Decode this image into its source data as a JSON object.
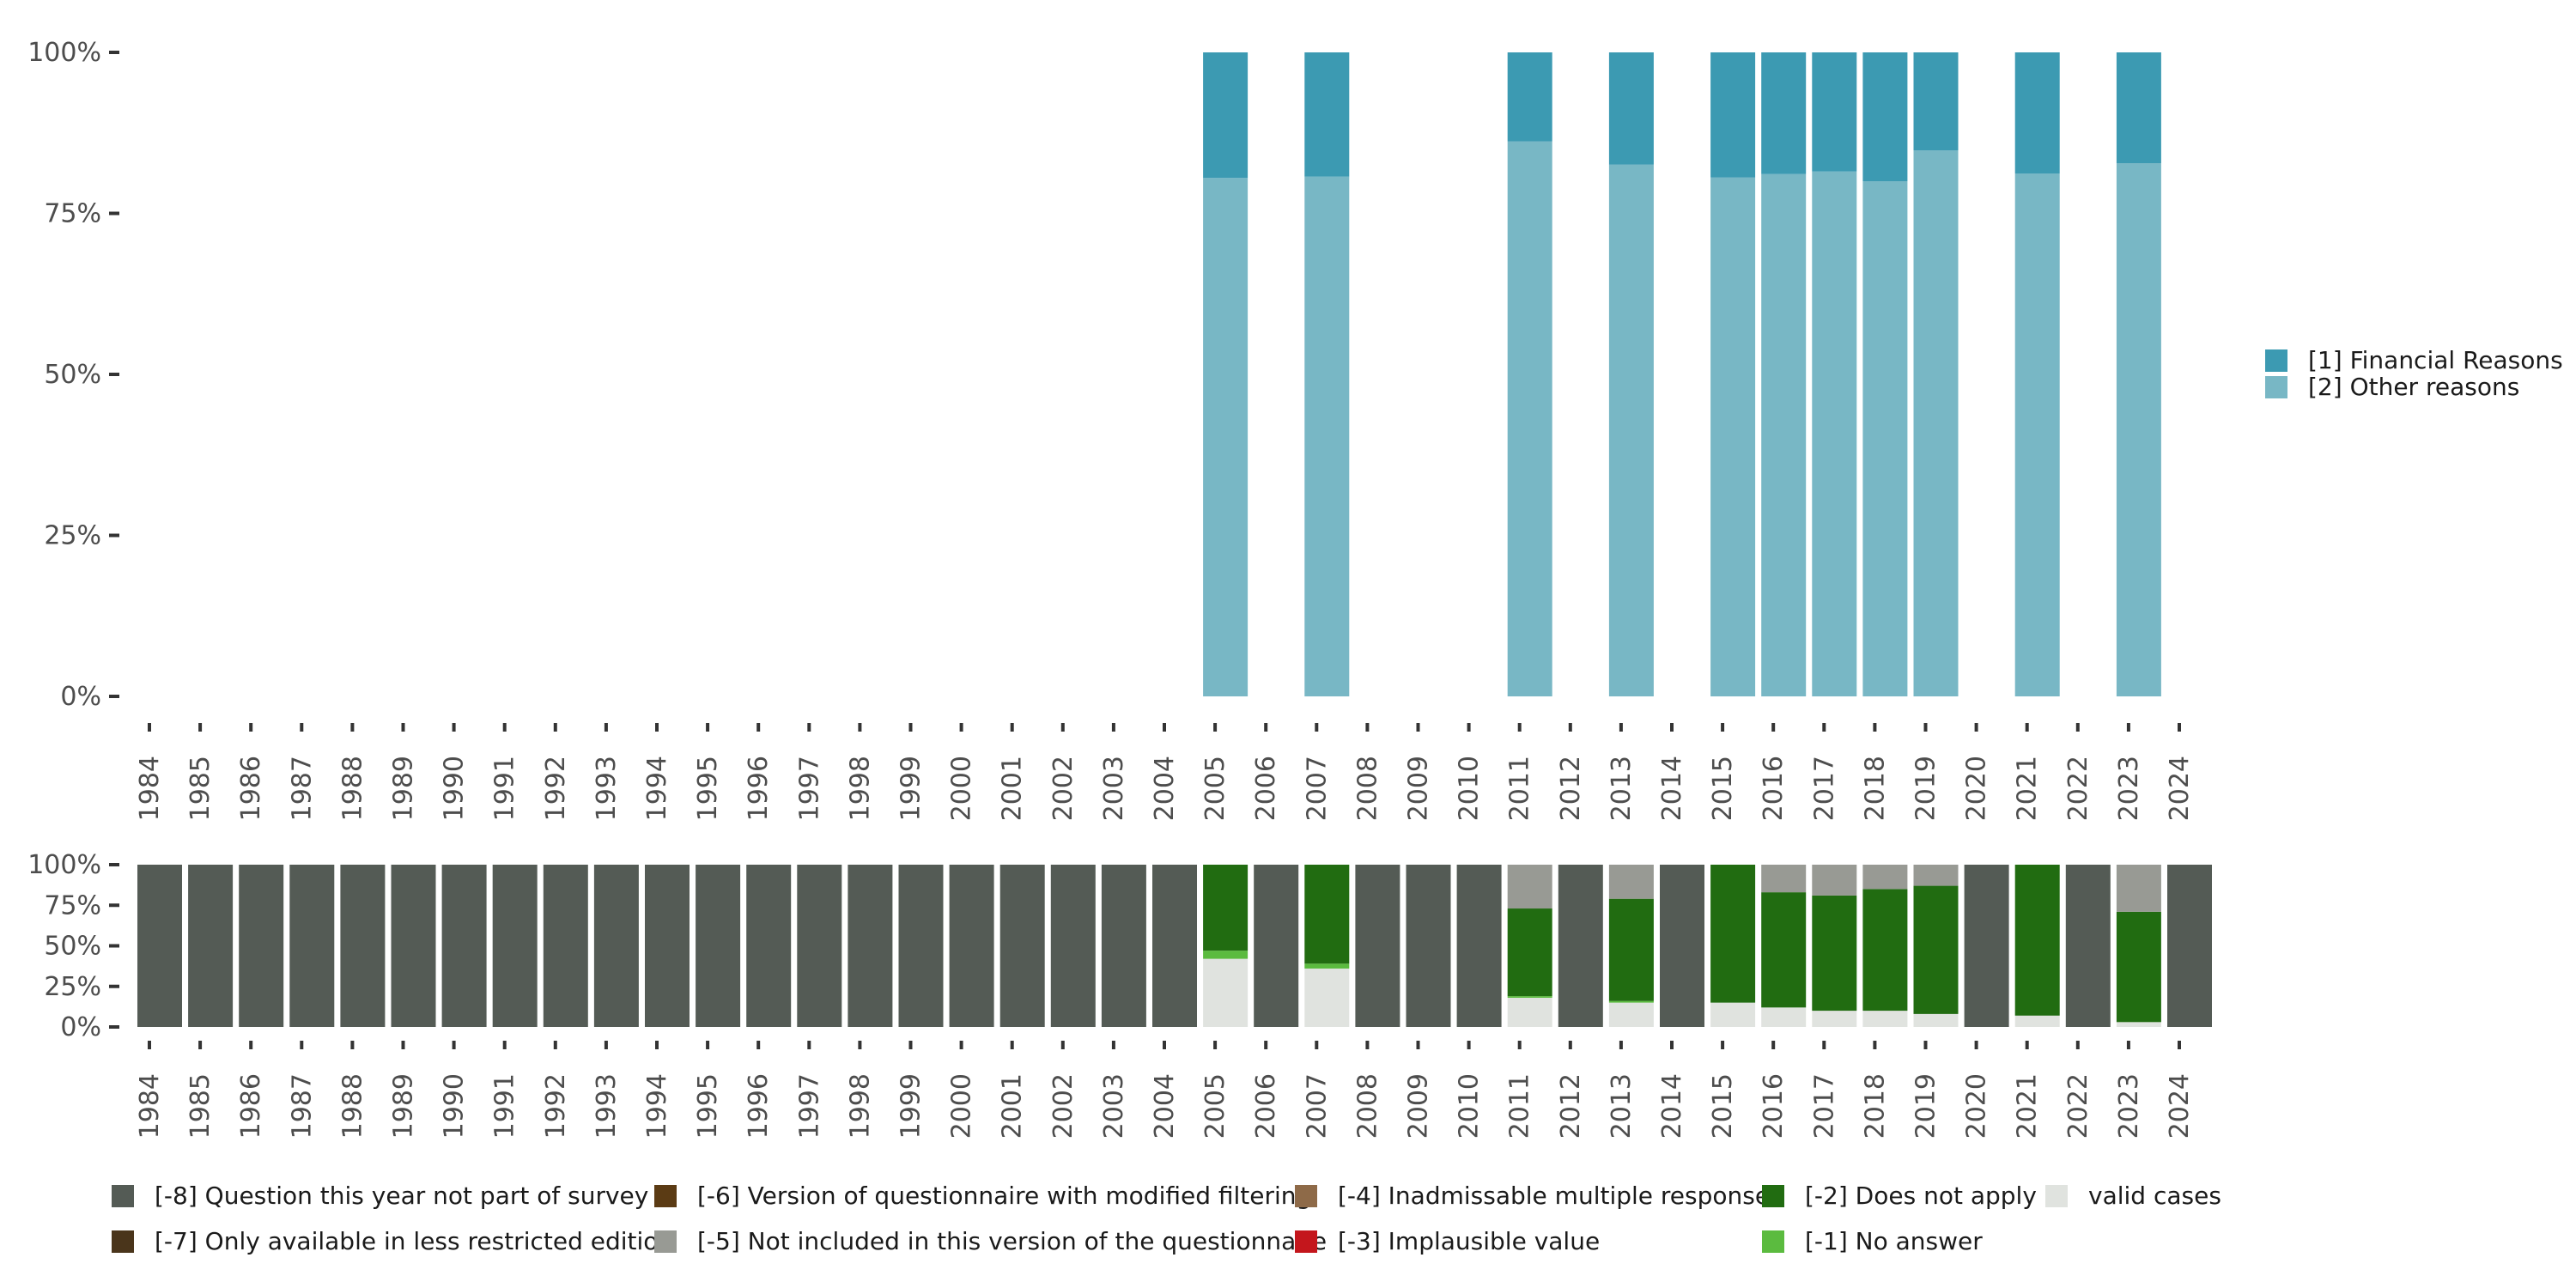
{
  "colors": {
    "financial": "#3c9ab2",
    "other": "#78b7c5",
    "m8": "#545b55",
    "m7": "#4a351b",
    "m6": "#5b3b14",
    "m5": "#989a94",
    "m4": "#8e6a48",
    "m3": "#c4161c",
    "m2": "#216c11",
    "m1": "#5bbb3f",
    "valid": "#e0e3df",
    "axis": "#333333"
  },
  "chart_data": [
    {
      "type": "bar",
      "stacked": true,
      "title": "",
      "xlabel": "",
      "ylabel": "",
      "ylim": [
        0,
        100
      ],
      "y_ticks": [
        "0%",
        "25%",
        "50%",
        "75%",
        "100%"
      ],
      "categories": [
        "1984",
        "1985",
        "1986",
        "1987",
        "1988",
        "1989",
        "1990",
        "1991",
        "1992",
        "1993",
        "1994",
        "1995",
        "1996",
        "1997",
        "1998",
        "1999",
        "2000",
        "2001",
        "2002",
        "2003",
        "2004",
        "2005",
        "2006",
        "2007",
        "2008",
        "2009",
        "2010",
        "2011",
        "2012",
        "2013",
        "2014",
        "2015",
        "2016",
        "2017",
        "2018",
        "2019",
        "2020",
        "2021",
        "2022",
        "2023",
        "2024"
      ],
      "series": [
        {
          "name": "[2] Other reasons",
          "color_key": "other",
          "values": [
            null,
            null,
            null,
            null,
            null,
            null,
            null,
            null,
            null,
            null,
            null,
            null,
            null,
            null,
            null,
            null,
            null,
            null,
            null,
            null,
            null,
            80.5,
            null,
            80.7,
            null,
            null,
            null,
            86.2,
            null,
            82.6,
            null,
            80.6,
            81.1,
            81.5,
            80.0,
            84.8,
            null,
            81.2,
            null,
            82.8,
            null
          ]
        },
        {
          "name": "[1] Financial Reasons",
          "color_key": "financial",
          "values": [
            null,
            null,
            null,
            null,
            null,
            null,
            null,
            null,
            null,
            null,
            null,
            null,
            null,
            null,
            null,
            null,
            null,
            null,
            null,
            null,
            null,
            19.5,
            null,
            19.3,
            null,
            null,
            null,
            13.8,
            null,
            17.4,
            null,
            19.4,
            18.9,
            18.5,
            20.0,
            15.2,
            null,
            18.8,
            null,
            17.2,
            null
          ]
        }
      ],
      "legend": [
        "[1] Financial Reasons",
        "[2] Other reasons"
      ],
      "legend_position": "right"
    },
    {
      "type": "bar",
      "stacked": true,
      "title": "",
      "xlabel": "",
      "ylabel": "",
      "ylim": [
        0,
        100
      ],
      "y_ticks": [
        "0%",
        "25%",
        "50%",
        "75%",
        "100%"
      ],
      "categories": [
        "1984",
        "1985",
        "1986",
        "1987",
        "1988",
        "1989",
        "1990",
        "1991",
        "1992",
        "1993",
        "1994",
        "1995",
        "1996",
        "1997",
        "1998",
        "1999",
        "2000",
        "2001",
        "2002",
        "2003",
        "2004",
        "2005",
        "2006",
        "2007",
        "2008",
        "2009",
        "2010",
        "2011",
        "2012",
        "2013",
        "2014",
        "2015",
        "2016",
        "2017",
        "2018",
        "2019",
        "2020",
        "2021",
        "2022",
        "2023",
        "2024"
      ],
      "series": [
        {
          "name": "valid cases",
          "color_key": "valid",
          "values": [
            0,
            0,
            0,
            0,
            0,
            0,
            0,
            0,
            0,
            0,
            0,
            0,
            0,
            0,
            0,
            0,
            0,
            0,
            0,
            0,
            0,
            42,
            0,
            36,
            0,
            0,
            0,
            18,
            0,
            15,
            0,
            15,
            12,
            10,
            10,
            8,
            0,
            7,
            0,
            3,
            0
          ]
        },
        {
          "name": "[-1] No answer",
          "color_key": "m1",
          "values": [
            0,
            0,
            0,
            0,
            0,
            0,
            0,
            0,
            0,
            0,
            0,
            0,
            0,
            0,
            0,
            0,
            0,
            0,
            0,
            0,
            0,
            5,
            0,
            3,
            0,
            0,
            0,
            1,
            0,
            1,
            0,
            0,
            0,
            0,
            0,
            0,
            0,
            0,
            0,
            0,
            0
          ]
        },
        {
          "name": "[-2] Does not apply",
          "color_key": "m2",
          "values": [
            0,
            0,
            0,
            0,
            0,
            0,
            0,
            0,
            0,
            0,
            0,
            0,
            0,
            0,
            0,
            0,
            0,
            0,
            0,
            0,
            0,
            53,
            0,
            61,
            0,
            0,
            0,
            54,
            0,
            63,
            0,
            85,
            71,
            71,
            75,
            79,
            0,
            93,
            0,
            68,
            0
          ]
        },
        {
          "name": "[-5] Not included in this version of the questionnaire",
          "color_key": "m5",
          "values": [
            0,
            0,
            0,
            0,
            0,
            0,
            0,
            0,
            0,
            0,
            0,
            0,
            0,
            0,
            0,
            0,
            0,
            0,
            0,
            0,
            0,
            0,
            0,
            0,
            0,
            0,
            0,
            27,
            0,
            21,
            0,
            0,
            17,
            19,
            15,
            13,
            0,
            0,
            0,
            29,
            0
          ]
        },
        {
          "name": "[-8] Question this year not part of survey",
          "color_key": "m8",
          "values": [
            100,
            100,
            100,
            100,
            100,
            100,
            100,
            100,
            100,
            100,
            100,
            100,
            100,
            100,
            100,
            100,
            100,
            100,
            100,
            100,
            100,
            0,
            100,
            0,
            100,
            100,
            100,
            0,
            100,
            0,
            100,
            0,
            0,
            0,
            0,
            0,
            100,
            0,
            100,
            0,
            100
          ]
        }
      ],
      "legend": [
        {
          "label": "[-8] Question this year not part of survey",
          "color_key": "m8"
        },
        {
          "label": "[-7] Only available in less restricted edition",
          "color_key": "m7"
        },
        {
          "label": "[-6] Version of questionnaire with modified filtering",
          "color_key": "m6"
        },
        {
          "label": "[-5] Not included in this version of the questionnaire",
          "color_key": "m5"
        },
        {
          "label": "[-4] Inadmissable multiple response",
          "color_key": "m4"
        },
        {
          "label": "[-3] Implausible value",
          "color_key": "m3"
        },
        {
          "label": "[-2] Does not apply",
          "color_key": "m2"
        },
        {
          "label": "[-1] No answer",
          "color_key": "m1"
        },
        {
          "label": "valid cases",
          "color_key": "valid"
        }
      ],
      "legend_position": "bottom"
    }
  ]
}
